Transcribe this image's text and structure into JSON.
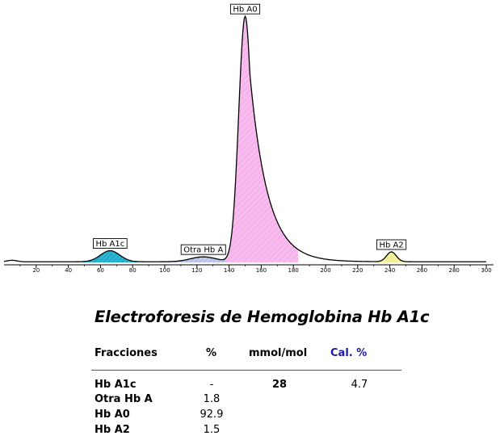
{
  "chart_data": {
    "type": "line",
    "x_range": [
      0,
      300
    ],
    "x_ticks": [
      20,
      40,
      60,
      80,
      100,
      120,
      140,
      160,
      180,
      200,
      220,
      240,
      260,
      280,
      300
    ],
    "peaks": [
      {
        "name": "Hb A1c",
        "x": 66,
        "height": 0.045,
        "width": 6,
        "color": "#29b8d6"
      },
      {
        "name": "Otra Hb A",
        "x": 124,
        "height": 0.02,
        "width": 8,
        "color": "#aab8e8"
      },
      {
        "name": "Hb A0",
        "x": 150,
        "height": 1.0,
        "width": 4,
        "tail": 11,
        "color": "#f7b4ec"
      },
      {
        "name": "Hb A2",
        "x": 241,
        "height": 0.04,
        "width": 3,
        "color": "#f2ee9a"
      }
    ]
  },
  "report": {
    "title": "Electroforesis de Hemoglobina Hb A1c",
    "headers": {
      "fractions": "Fracciones",
      "percent": "%",
      "mmol": "mmol/mol",
      "cal": "Cal. %"
    },
    "rows": [
      {
        "name": "Hb A1c",
        "pct": "-",
        "mmol": "28",
        "cal": "4.7"
      },
      {
        "name": "Otra Hb A",
        "pct": "1.8",
        "mmol": "",
        "cal": ""
      },
      {
        "name": "Hb A0",
        "pct": "92.9",
        "mmol": "",
        "cal": ""
      },
      {
        "name": "Hb A2",
        "pct": "1.5",
        "mmol": "",
        "cal": ""
      }
    ]
  }
}
